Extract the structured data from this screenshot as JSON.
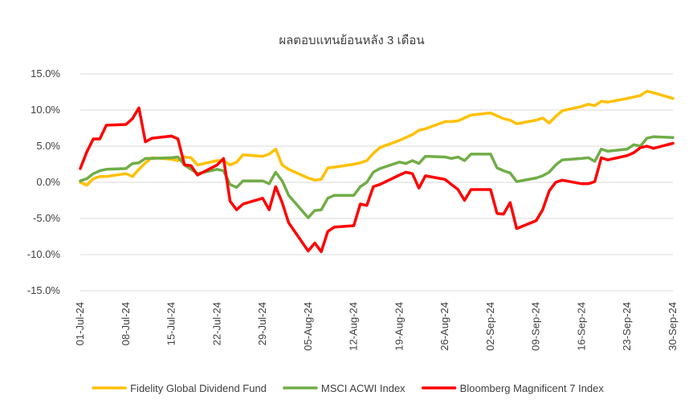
{
  "chart_data": {
    "type": "line",
    "title": "ผลตอบแทนย้อนหลัง 3 เดือน",
    "xlabel": "",
    "ylabel": "",
    "ylim": [
      -15,
      15
    ],
    "y_ticks": [
      "15.0%",
      "10.0%",
      "5.0%",
      "0.0%",
      "-5.0%",
      "-10.0%",
      "-15.0%"
    ],
    "y_tick_values": [
      15,
      10,
      5,
      0,
      -5,
      -10,
      -15
    ],
    "x_ticks": [
      "01-Jul-24",
      "08-Jul-24",
      "15-Jul-24",
      "22-Jul-24",
      "29-Jul-24",
      "05-Aug-24",
      "12-Aug-24",
      "19-Aug-24",
      "26-Aug-24",
      "02-Sep-24",
      "09-Sep-24",
      "16-Sep-24",
      "23-Sep-24",
      "30-Sep-24"
    ],
    "x_range": [
      "2024-07-01",
      "2024-09-30"
    ],
    "grid": "horizontal",
    "legend_position": "bottom",
    "series": [
      {
        "name": "Fidelity Global Dividend Fund",
        "color": "#FFC000",
        "points": [
          [
            "2024-07-01",
            0.0
          ],
          [
            "2024-07-02",
            -0.4
          ],
          [
            "2024-07-03",
            0.5
          ],
          [
            "2024-07-04",
            0.8
          ],
          [
            "2024-07-05",
            0.8
          ],
          [
            "2024-07-08",
            1.2
          ],
          [
            "2024-07-09",
            0.8
          ],
          [
            "2024-07-10",
            1.8
          ],
          [
            "2024-07-11",
            2.7
          ],
          [
            "2024-07-12",
            3.4
          ],
          [
            "2024-07-15",
            3.2
          ],
          [
            "2024-07-16",
            3.0
          ],
          [
            "2024-07-17",
            3.5
          ],
          [
            "2024-07-18",
            3.4
          ],
          [
            "2024-07-19",
            2.4
          ],
          [
            "2024-07-22",
            3.0
          ],
          [
            "2024-07-23",
            3.0
          ],
          [
            "2024-07-24",
            2.4
          ],
          [
            "2024-07-25",
            2.8
          ],
          [
            "2024-07-26",
            3.8
          ],
          [
            "2024-07-29",
            3.6
          ],
          [
            "2024-07-30",
            3.9
          ],
          [
            "2024-07-31",
            4.6
          ],
          [
            "2024-08-01",
            2.4
          ],
          [
            "2024-08-02",
            1.8
          ],
          [
            "2024-08-05",
            0.6
          ],
          [
            "2024-08-06",
            0.3
          ],
          [
            "2024-08-07",
            0.4
          ],
          [
            "2024-08-08",
            2.0
          ],
          [
            "2024-08-09",
            2.1
          ],
          [
            "2024-08-12",
            2.5
          ],
          [
            "2024-08-13",
            2.7
          ],
          [
            "2024-08-14",
            3.0
          ],
          [
            "2024-08-15",
            4.0
          ],
          [
            "2024-08-16",
            4.8
          ],
          [
            "2024-08-19",
            5.8
          ],
          [
            "2024-08-20",
            6.2
          ],
          [
            "2024-08-21",
            6.6
          ],
          [
            "2024-08-22",
            7.2
          ],
          [
            "2024-08-23",
            7.4
          ],
          [
            "2024-08-26",
            8.4
          ],
          [
            "2024-08-27",
            8.4
          ],
          [
            "2024-08-28",
            8.5
          ],
          [
            "2024-08-29",
            8.9
          ],
          [
            "2024-08-30",
            9.3
          ],
          [
            "2024-09-02",
            9.6
          ],
          [
            "2024-09-03",
            9.2
          ],
          [
            "2024-09-04",
            8.8
          ],
          [
            "2024-09-05",
            8.6
          ],
          [
            "2024-09-06",
            8.1
          ],
          [
            "2024-09-09",
            8.6
          ],
          [
            "2024-09-10",
            8.9
          ],
          [
            "2024-09-11",
            8.2
          ],
          [
            "2024-09-12",
            9.1
          ],
          [
            "2024-09-13",
            9.9
          ],
          [
            "2024-09-16",
            10.5
          ],
          [
            "2024-09-17",
            10.8
          ],
          [
            "2024-09-18",
            10.6
          ],
          [
            "2024-09-19",
            11.2
          ],
          [
            "2024-09-20",
            11.1
          ],
          [
            "2024-09-23",
            11.6
          ],
          [
            "2024-09-24",
            11.8
          ],
          [
            "2024-09-25",
            12.0
          ],
          [
            "2024-09-26",
            12.6
          ],
          [
            "2024-09-27",
            12.4
          ],
          [
            "2024-09-30",
            11.6
          ]
        ]
      },
      {
        "name": "MSCI ACWI Index",
        "color": "#70AD47",
        "points": [
          [
            "2024-07-01",
            0.2
          ],
          [
            "2024-07-02",
            0.5
          ],
          [
            "2024-07-03",
            1.2
          ],
          [
            "2024-07-04",
            1.6
          ],
          [
            "2024-07-05",
            1.8
          ],
          [
            "2024-07-08",
            1.9
          ],
          [
            "2024-07-09",
            2.6
          ],
          [
            "2024-07-10",
            2.7
          ],
          [
            "2024-07-11",
            3.3
          ],
          [
            "2024-07-12",
            3.3
          ],
          [
            "2024-07-15",
            3.4
          ],
          [
            "2024-07-16",
            3.5
          ],
          [
            "2024-07-17",
            2.4
          ],
          [
            "2024-07-18",
            1.8
          ],
          [
            "2024-07-19",
            1.2
          ],
          [
            "2024-07-22",
            1.8
          ],
          [
            "2024-07-23",
            1.6
          ],
          [
            "2024-07-24",
            -0.3
          ],
          [
            "2024-07-25",
            -0.7
          ],
          [
            "2024-07-26",
            0.2
          ],
          [
            "2024-07-29",
            0.2
          ],
          [
            "2024-07-30",
            -0.2
          ],
          [
            "2024-07-31",
            1.4
          ],
          [
            "2024-08-01",
            0.2
          ],
          [
            "2024-08-02",
            -1.8
          ],
          [
            "2024-08-05",
            -4.9
          ],
          [
            "2024-08-06",
            -3.9
          ],
          [
            "2024-08-07",
            -3.8
          ],
          [
            "2024-08-08",
            -2.2
          ],
          [
            "2024-08-09",
            -1.8
          ],
          [
            "2024-08-12",
            -1.8
          ],
          [
            "2024-08-13",
            -0.6
          ],
          [
            "2024-08-14",
            0.0
          ],
          [
            "2024-08-15",
            1.4
          ],
          [
            "2024-08-16",
            1.9
          ],
          [
            "2024-08-19",
            2.8
          ],
          [
            "2024-08-20",
            2.6
          ],
          [
            "2024-08-21",
            3.0
          ],
          [
            "2024-08-22",
            2.6
          ],
          [
            "2024-08-23",
            3.6
          ],
          [
            "2024-08-26",
            3.5
          ],
          [
            "2024-08-27",
            3.3
          ],
          [
            "2024-08-28",
            3.5
          ],
          [
            "2024-08-29",
            3.0
          ],
          [
            "2024-08-30",
            3.9
          ],
          [
            "2024-09-02",
            3.9
          ],
          [
            "2024-09-03",
            2.0
          ],
          [
            "2024-09-04",
            1.6
          ],
          [
            "2024-09-05",
            1.3
          ],
          [
            "2024-09-06",
            0.1
          ],
          [
            "2024-09-09",
            0.6
          ],
          [
            "2024-09-10",
            0.9
          ],
          [
            "2024-09-11",
            1.4
          ],
          [
            "2024-09-12",
            2.4
          ],
          [
            "2024-09-13",
            3.1
          ],
          [
            "2024-09-16",
            3.3
          ],
          [
            "2024-09-17",
            3.4
          ],
          [
            "2024-09-18",
            2.9
          ],
          [
            "2024-09-19",
            4.6
          ],
          [
            "2024-09-20",
            4.3
          ],
          [
            "2024-09-23",
            4.6
          ],
          [
            "2024-09-24",
            5.2
          ],
          [
            "2024-09-25",
            5.0
          ],
          [
            "2024-09-26",
            6.1
          ],
          [
            "2024-09-27",
            6.3
          ],
          [
            "2024-09-30",
            6.2
          ]
        ]
      },
      {
        "name": "Bloomberg Magnificent 7 Index",
        "color": "#FF0000",
        "points": [
          [
            "2024-07-01",
            1.9
          ],
          [
            "2024-07-02",
            4.2
          ],
          [
            "2024-07-03",
            6.0
          ],
          [
            "2024-07-04",
            6.0
          ],
          [
            "2024-07-05",
            7.9
          ],
          [
            "2024-07-08",
            8.0
          ],
          [
            "2024-07-09",
            8.8
          ],
          [
            "2024-07-10",
            10.3
          ],
          [
            "2024-07-11",
            5.6
          ],
          [
            "2024-07-12",
            6.1
          ],
          [
            "2024-07-15",
            6.4
          ],
          [
            "2024-07-16",
            6.0
          ],
          [
            "2024-07-17",
            2.4
          ],
          [
            "2024-07-18",
            2.3
          ],
          [
            "2024-07-19",
            1.0
          ],
          [
            "2024-07-22",
            2.4
          ],
          [
            "2024-07-23",
            3.3
          ],
          [
            "2024-07-24",
            -2.6
          ],
          [
            "2024-07-25",
            -3.8
          ],
          [
            "2024-07-26",
            -3.0
          ],
          [
            "2024-07-29",
            -2.2
          ],
          [
            "2024-07-30",
            -3.8
          ],
          [
            "2024-07-31",
            -0.6
          ],
          [
            "2024-08-01",
            -2.8
          ],
          [
            "2024-08-02",
            -5.6
          ],
          [
            "2024-08-05",
            -9.5
          ],
          [
            "2024-08-06",
            -8.4
          ],
          [
            "2024-08-07",
            -9.6
          ],
          [
            "2024-08-08",
            -6.8
          ],
          [
            "2024-08-09",
            -6.2
          ],
          [
            "2024-08-12",
            -6.0
          ],
          [
            "2024-08-13",
            -3.0
          ],
          [
            "2024-08-14",
            -3.2
          ],
          [
            "2024-08-15",
            -0.6
          ],
          [
            "2024-08-16",
            -0.3
          ],
          [
            "2024-08-19",
            1.0
          ],
          [
            "2024-08-20",
            1.4
          ],
          [
            "2024-08-21",
            1.2
          ],
          [
            "2024-08-22",
            -0.8
          ],
          [
            "2024-08-23",
            0.9
          ],
          [
            "2024-08-26",
            0.4
          ],
          [
            "2024-08-27",
            -0.3
          ],
          [
            "2024-08-28",
            -1.0
          ],
          [
            "2024-08-29",
            -2.5
          ],
          [
            "2024-08-30",
            -1.0
          ],
          [
            "2024-09-02",
            -1.0
          ],
          [
            "2024-09-03",
            -4.3
          ],
          [
            "2024-09-04",
            -4.4
          ],
          [
            "2024-09-05",
            -2.8
          ],
          [
            "2024-09-06",
            -6.4
          ],
          [
            "2024-09-09",
            -5.3
          ],
          [
            "2024-09-10",
            -3.8
          ],
          [
            "2024-09-11",
            -1.2
          ],
          [
            "2024-09-12",
            0.0
          ],
          [
            "2024-09-13",
            0.3
          ],
          [
            "2024-09-16",
            -0.2
          ],
          [
            "2024-09-17",
            -0.2
          ],
          [
            "2024-09-18",
            0.1
          ],
          [
            "2024-09-19",
            3.4
          ],
          [
            "2024-09-20",
            3.1
          ],
          [
            "2024-09-23",
            3.7
          ],
          [
            "2024-09-24",
            4.1
          ],
          [
            "2024-09-25",
            4.8
          ],
          [
            "2024-09-26",
            5.0
          ],
          [
            "2024-09-27",
            4.7
          ],
          [
            "2024-09-30",
            5.4
          ]
        ]
      }
    ]
  }
}
